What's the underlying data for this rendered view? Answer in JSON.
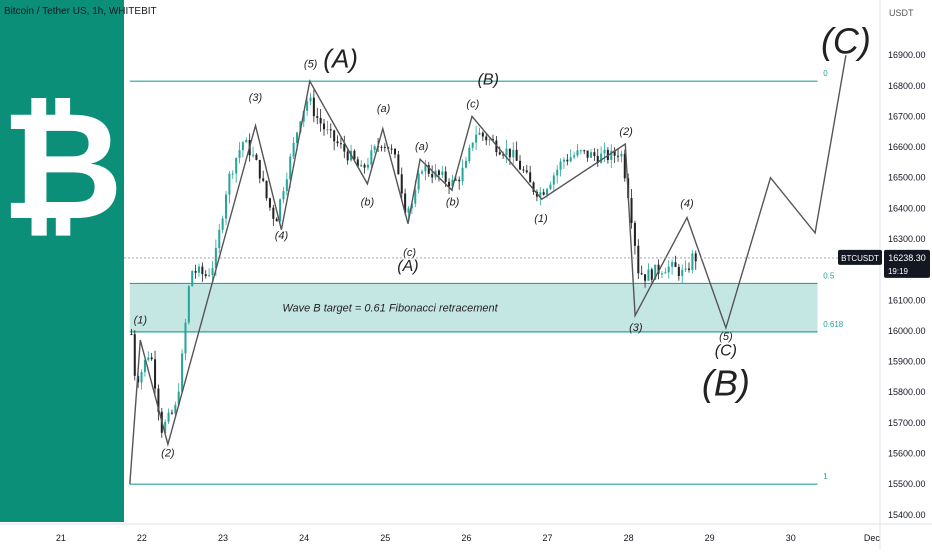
{
  "header": {
    "symbol_title": "Bitcoin / Tether US, 1h, WHITEBIT"
  },
  "logo": {
    "glyph": "₿",
    "icon": "bitcoin-icon",
    "background": "#0b8f78"
  },
  "colors": {
    "up": "#26a69a",
    "down": "#222222",
    "fib": "#26a69a",
    "zone": "#b2dfdb",
    "wave": "#555555",
    "tag_bg": "#131722"
  },
  "axis": {
    "currency": "USDT",
    "y_ticks": [
      "16900.00",
      "16800.00",
      "16700.00",
      "16600.00",
      "16500.00",
      "16400.00",
      "16300.00",
      "16200.00",
      "16100.00",
      "16000.00",
      "15900.00",
      "15800.00",
      "15700.00",
      "15600.00",
      "15500.00",
      "15400.00"
    ],
    "x_ticks": [
      "21",
      "22",
      "23",
      "24",
      "25",
      "26",
      "27",
      "28",
      "29",
      "30",
      "Dec"
    ]
  },
  "price_tag": {
    "symbol": "BTCUSDT",
    "price": "16238.30",
    "countdown": "19:19"
  },
  "annotation": {
    "text": "Wave B target = 0.61 Fibonacci retracement"
  },
  "fib_levels": [
    {
      "label": "0",
      "price": 16815
    },
    {
      "label": "0.5",
      "price": 16155
    },
    {
      "label": "0.618",
      "price": 15997
    },
    {
      "label": "1",
      "price": 15500
    }
  ],
  "wave_labels": [
    {
      "text": "(1)",
      "x": 21.98,
      "y": 16025,
      "size": "s"
    },
    {
      "text": "(2)",
      "x": 22.32,
      "y": 15590,
      "size": "s"
    },
    {
      "text": "(3)",
      "x": 23.4,
      "y": 16750,
      "size": "s"
    },
    {
      "text": "(4)",
      "x": 23.72,
      "y": 16300,
      "size": "s"
    },
    {
      "text": "(5)",
      "x": 24.08,
      "y": 16860,
      "size": "s"
    },
    {
      "text": "(A)",
      "x": 24.45,
      "y": 16860,
      "size": "l"
    },
    {
      "text": "(a)",
      "x": 24.98,
      "y": 16715,
      "size": "s"
    },
    {
      "text": "(b)",
      "x": 24.78,
      "y": 16410,
      "size": "s"
    },
    {
      "text": "(c)",
      "x": 25.3,
      "y": 16245,
      "size": "s"
    },
    {
      "text": "(A)",
      "x": 25.28,
      "y": 16195,
      "size": "m"
    },
    {
      "text": "(a)",
      "x": 25.45,
      "y": 16590,
      "size": "s"
    },
    {
      "text": "(b)",
      "x": 25.83,
      "y": 16410,
      "size": "s"
    },
    {
      "text": "(c)",
      "x": 26.08,
      "y": 16730,
      "size": "s"
    },
    {
      "text": "(B)",
      "x": 26.27,
      "y": 16805,
      "size": "m"
    },
    {
      "text": "(1)",
      "x": 26.92,
      "y": 16355,
      "size": "s"
    },
    {
      "text": "(2)",
      "x": 27.97,
      "y": 16640,
      "size": "s"
    },
    {
      "text": "(3)",
      "x": 28.09,
      "y": 16000,
      "size": "s"
    },
    {
      "text": "(4)",
      "x": 28.72,
      "y": 16405,
      "size": "s"
    },
    {
      "text": "(5)",
      "x": 29.2,
      "y": 15970,
      "size": "s"
    },
    {
      "text": "(C)",
      "x": 29.2,
      "y": 15920,
      "size": "m"
    },
    {
      "text": "(B)",
      "x": 29.2,
      "y": 15790,
      "size": "xl"
    },
    {
      "text": "(C)",
      "x": 30.68,
      "y": 16905,
      "size": "xl"
    }
  ],
  "chart_data": {
    "type": "candlestick",
    "title": "Bitcoin / Tether US, 1h, WHITEBIT",
    "xlabel": "",
    "ylabel": "USDT",
    "x_unit": "day of month (Nov 2022, 1h candles)",
    "xlim": [
      20.25,
      31.1
    ],
    "ylim": [
      15370,
      17080
    ],
    "grid": false,
    "legend": "none",
    "price_path": [
      [
        21.87,
        15990
      ],
      [
        21.92,
        15840
      ],
      [
        21.98,
        15860
      ],
      [
        22.1,
        15940
      ],
      [
        22.18,
        15800
      ],
      [
        22.24,
        15680
      ],
      [
        22.3,
        15700
      ],
      [
        22.42,
        15750
      ],
      [
        22.5,
        15920
      ],
      [
        22.6,
        16200
      ],
      [
        22.7,
        16190
      ],
      [
        22.8,
        16180
      ],
      [
        22.9,
        16230
      ],
      [
        23.05,
        16480
      ],
      [
        23.15,
        16560
      ],
      [
        23.25,
        16620
      ],
      [
        23.35,
        16580
      ],
      [
        23.45,
        16520
      ],
      [
        23.55,
        16420
      ],
      [
        23.65,
        16360
      ],
      [
        23.75,
        16480
      ],
      [
        23.85,
        16580
      ],
      [
        23.95,
        16700
      ],
      [
        24.05,
        16760
      ],
      [
        24.15,
        16700
      ],
      [
        24.3,
        16640
      ],
      [
        24.45,
        16600
      ],
      [
        24.6,
        16560
      ],
      [
        24.7,
        16520
      ],
      [
        24.8,
        16560
      ],
      [
        24.95,
        16620
      ],
      [
        25.05,
        16600
      ],
      [
        25.15,
        16540
      ],
      [
        25.25,
        16400
      ],
      [
        25.35,
        16420
      ],
      [
        25.45,
        16540
      ],
      [
        25.55,
        16520
      ],
      [
        25.7,
        16500
      ],
      [
        25.85,
        16480
      ],
      [
        26.0,
        16540
      ],
      [
        26.1,
        16650
      ],
      [
        26.25,
        16630
      ],
      [
        26.4,
        16600
      ],
      [
        26.55,
        16580
      ],
      [
        26.7,
        16520
      ],
      [
        26.8,
        16470
      ],
      [
        26.92,
        16450
      ],
      [
        27.05,
        16500
      ],
      [
        27.2,
        16560
      ],
      [
        27.4,
        16580
      ],
      [
        27.6,
        16570
      ],
      [
        27.8,
        16570
      ],
      [
        27.9,
        16590
      ],
      [
        27.98,
        16480
      ],
      [
        28.05,
        16350
      ],
      [
        28.12,
        16200
      ],
      [
        28.2,
        16180
      ],
      [
        28.3,
        16190
      ],
      [
        28.45,
        16210
      ],
      [
        28.6,
        16200
      ],
      [
        28.7,
        16180
      ],
      [
        28.78,
        16240
      ],
      [
        28.85,
        16238
      ]
    ],
    "wave_path": [
      [
        21.85,
        15500
      ],
      [
        21.98,
        15970
      ],
      [
        22.32,
        15630
      ],
      [
        23.4,
        16670
      ],
      [
        23.72,
        16330
      ],
      [
        24.07,
        16815
      ],
      [
        24.78,
        16480
      ],
      [
        24.97,
        16660
      ],
      [
        25.28,
        16350
      ],
      [
        25.43,
        16560
      ],
      [
        25.82,
        16460
      ],
      [
        26.07,
        16700
      ],
      [
        26.93,
        16430
      ],
      [
        27.96,
        16610
      ],
      [
        28.08,
        16050
      ],
      [
        28.72,
        16370
      ],
      [
        29.2,
        16010
      ],
      [
        29.75,
        16500
      ],
      [
        30.3,
        16320
      ],
      [
        30.68,
        16900
      ]
    ],
    "fib_zone": [
      15997,
      16155
    ],
    "last_price": 16238.3
  }
}
